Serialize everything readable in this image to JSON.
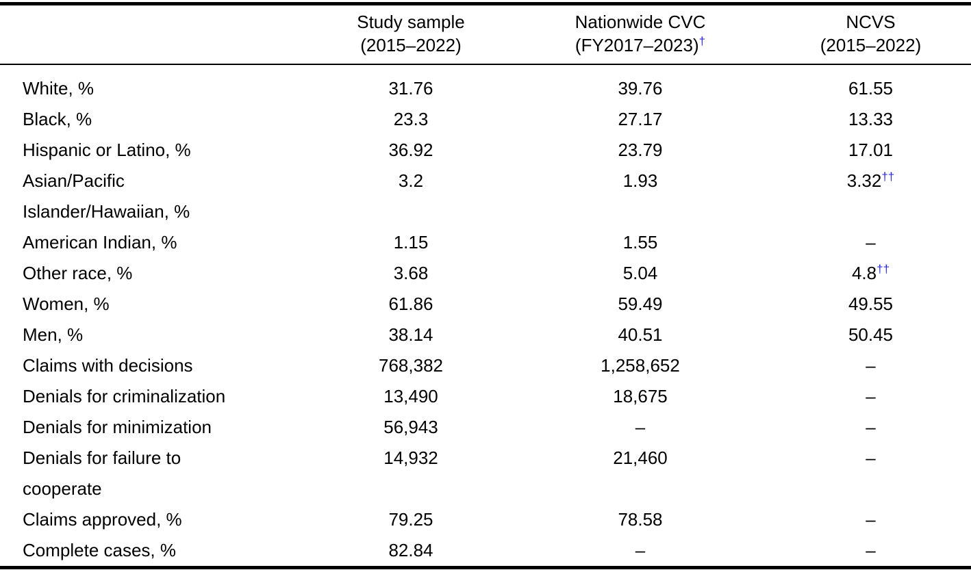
{
  "colors": {
    "dagger_blue": "#2323d9",
    "text": "#000000",
    "rule": "#000000"
  },
  "table": {
    "header": {
      "study_sample": {
        "line1": "Study sample",
        "line2": "(2015–2022)",
        "sup": ""
      },
      "nationwide_cvc": {
        "line1": "Nationwide CVC",
        "line2": "(FY2017–2023)",
        "sup": "†"
      },
      "ncvs": {
        "line1": "NCVS",
        "line2": "(2015–2022)",
        "sup": ""
      }
    },
    "rows": [
      {
        "label_lines": [
          "White, %"
        ],
        "study_sample": "31.76",
        "nationwide_cvc": "39.76",
        "ncvs": "61.55",
        "ncvs_sup": ""
      },
      {
        "label_lines": [
          "Black, %"
        ],
        "study_sample": "23.3",
        "nationwide_cvc": "27.17",
        "ncvs": "13.33",
        "ncvs_sup": ""
      },
      {
        "label_lines": [
          "Hispanic or Latino, %"
        ],
        "study_sample": "36.92",
        "nationwide_cvc": "23.79",
        "ncvs": "17.01",
        "ncvs_sup": ""
      },
      {
        "label_lines": [
          "Asian/Pacific",
          "Islander/Hawaiian, %"
        ],
        "study_sample": "3.2",
        "nationwide_cvc": "1.93",
        "ncvs": "3.32",
        "ncvs_sup": "††"
      },
      {
        "label_lines": [
          "American Indian, %"
        ],
        "study_sample": "1.15",
        "nationwide_cvc": "1.55",
        "ncvs": "–",
        "ncvs_sup": ""
      },
      {
        "label_lines": [
          "Other race, %"
        ],
        "study_sample": "3.68",
        "nationwide_cvc": "5.04",
        "ncvs": "4.8",
        "ncvs_sup": "††"
      },
      {
        "label_lines": [
          "Women, %"
        ],
        "study_sample": "61.86",
        "nationwide_cvc": "59.49",
        "ncvs": "49.55",
        "ncvs_sup": ""
      },
      {
        "label_lines": [
          "Men, %"
        ],
        "study_sample": "38.14",
        "nationwide_cvc": "40.51",
        "ncvs": "50.45",
        "ncvs_sup": ""
      },
      {
        "label_lines": [
          "Claims with decisions"
        ],
        "study_sample": "768,382",
        "nationwide_cvc": "1,258,652",
        "ncvs": "–",
        "ncvs_sup": ""
      },
      {
        "label_lines": [
          "Denials for criminalization"
        ],
        "study_sample": "13,490",
        "nationwide_cvc": "18,675",
        "ncvs": "–",
        "ncvs_sup": ""
      },
      {
        "label_lines": [
          "Denials for minimization"
        ],
        "study_sample": "56,943",
        "nationwide_cvc": "–",
        "ncvs": "–",
        "ncvs_sup": ""
      },
      {
        "label_lines": [
          "Denials for failure to",
          "cooperate"
        ],
        "study_sample": "14,932",
        "nationwide_cvc": "21,460",
        "ncvs": "–",
        "ncvs_sup": ""
      },
      {
        "label_lines": [
          "Claims approved, %"
        ],
        "study_sample": "79.25",
        "nationwide_cvc": "78.58",
        "ncvs": "–",
        "ncvs_sup": ""
      },
      {
        "label_lines": [
          "Complete cases, %"
        ],
        "study_sample": "82.84",
        "nationwide_cvc": "–",
        "ncvs": "–",
        "ncvs_sup": ""
      }
    ]
  }
}
